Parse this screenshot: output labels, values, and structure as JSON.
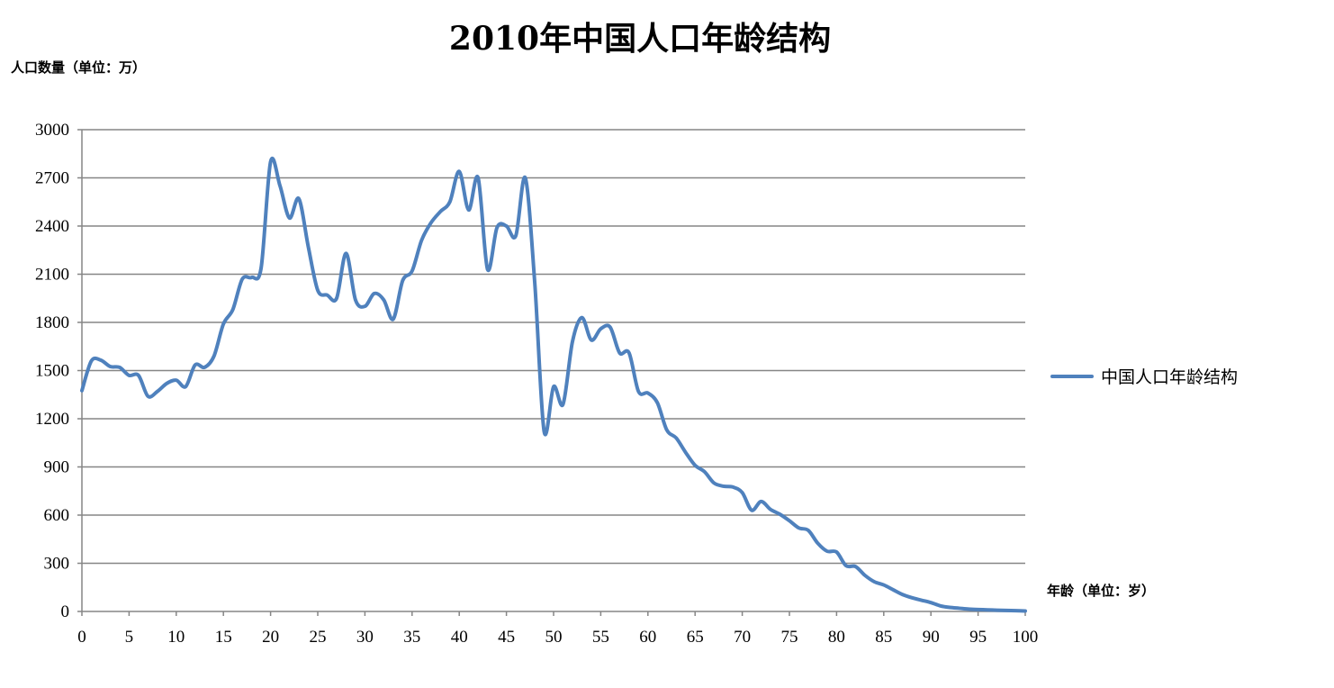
{
  "chart_data": {
    "type": "line",
    "title": "2010年中国人口年龄结构",
    "ylabel": "人口数量（单位：万）",
    "xlabel": "年龄（单位：岁）",
    "xlim": [
      0,
      100
    ],
    "ylim": [
      0,
      3000
    ],
    "xticks": [
      0,
      5,
      10,
      15,
      20,
      25,
      30,
      35,
      40,
      45,
      50,
      55,
      60,
      65,
      70,
      75,
      80,
      85,
      90,
      95,
      100
    ],
    "yticks": [
      0,
      300,
      600,
      900,
      1200,
      1500,
      1800,
      2100,
      2400,
      2700,
      3000
    ],
    "grid": "horizontal",
    "legend_position": "right",
    "colors": {
      "series": "#4F81BD",
      "grid": "#868686"
    },
    "series": [
      {
        "name": "中国人口年龄结构",
        "x": [
          0,
          1,
          2,
          3,
          4,
          5,
          6,
          7,
          8,
          9,
          10,
          11,
          12,
          13,
          14,
          15,
          16,
          17,
          18,
          19,
          20,
          21,
          22,
          23,
          24,
          25,
          26,
          27,
          28,
          29,
          30,
          31,
          32,
          33,
          34,
          35,
          36,
          37,
          38,
          39,
          40,
          41,
          42,
          43,
          44,
          45,
          46,
          47,
          48,
          49,
          50,
          51,
          52,
          53,
          54,
          55,
          56,
          57,
          58,
          59,
          60,
          61,
          62,
          63,
          64,
          65,
          66,
          67,
          68,
          69,
          70,
          71,
          72,
          73,
          74,
          75,
          76,
          77,
          78,
          79,
          80,
          81,
          82,
          83,
          84,
          85,
          86,
          87,
          88,
          89,
          90,
          91,
          92,
          93,
          94,
          95,
          96,
          97,
          98,
          99,
          100
        ],
        "values": [
          1375,
          1560,
          1565,
          1525,
          1520,
          1470,
          1470,
          1340,
          1370,
          1420,
          1440,
          1400,
          1535,
          1520,
          1590,
          1790,
          1880,
          2070,
          2080,
          2140,
          2800,
          2650,
          2450,
          2570,
          2270,
          2000,
          1970,
          1950,
          2230,
          1940,
          1900,
          1980,
          1940,
          1820,
          2060,
          2120,
          2310,
          2420,
          2490,
          2550,
          2740,
          2500,
          2700,
          2130,
          2390,
          2400,
          2340,
          2700,
          2050,
          1120,
          1400,
          1290,
          1680,
          1830,
          1690,
          1760,
          1770,
          1610,
          1610,
          1370,
          1360,
          1300,
          1130,
          1080,
          990,
          910,
          870,
          800,
          780,
          775,
          740,
          630,
          685,
          635,
          605,
          565,
          520,
          505,
          425,
          375,
          370,
          285,
          280,
          225,
          185,
          165,
          135,
          105,
          85,
          70,
          55,
          35,
          25,
          20,
          15,
          12,
          10,
          8,
          6,
          5,
          3
        ]
      }
    ]
  }
}
